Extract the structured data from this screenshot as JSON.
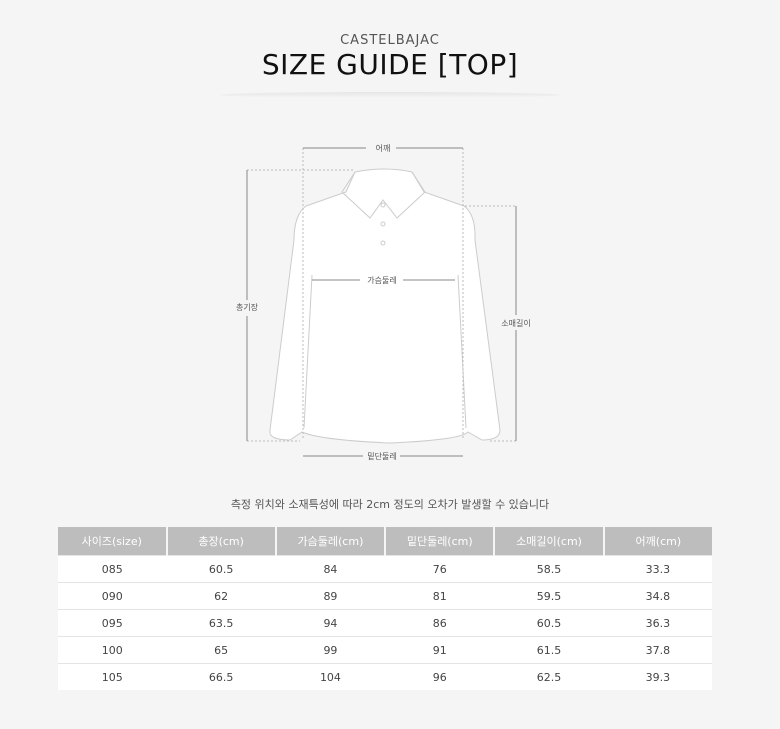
{
  "header": {
    "brand": "CASTELBAJAC",
    "title": "SIZE GUIDE [TOP]"
  },
  "diagram": {
    "labels": {
      "shoulder": "어깨",
      "chest": "가슴둘레",
      "total_length": "총기장",
      "sleeve": "소매길이",
      "hem": "밑단둘레"
    }
  },
  "note": "측정 위치와 소재특성에 따라 2cm 정도의 오차가 발생할 수 있습니다",
  "table": {
    "headers": [
      "사이즈(size)",
      "총장(cm)",
      "가슴둘레(cm)",
      "밑단둘레(cm)",
      "소매길이(cm)",
      "어깨(cm)"
    ],
    "rows": [
      [
        "085",
        "60.5",
        "84",
        "76",
        "58.5",
        "33.3"
      ],
      [
        "090",
        "62",
        "89",
        "81",
        "59.5",
        "34.8"
      ],
      [
        "095",
        "63.5",
        "94",
        "86",
        "60.5",
        "36.3"
      ],
      [
        "100",
        "65",
        "99",
        "91",
        "61.5",
        "37.8"
      ],
      [
        "105",
        "66.5",
        "104",
        "96",
        "62.5",
        "39.3"
      ]
    ]
  }
}
